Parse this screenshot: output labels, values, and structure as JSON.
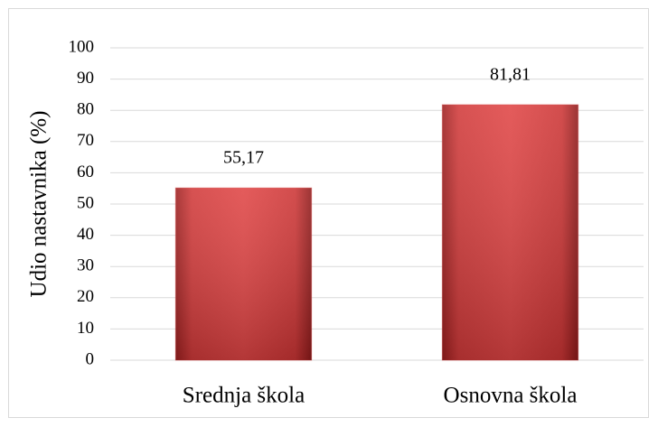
{
  "chart_data": {
    "type": "bar",
    "y_label": "Udio nastavnika (%)",
    "categories": [
      "Srednja škola",
      "Osnovna škola"
    ],
    "values": [
      55.17,
      81.81
    ],
    "value_labels": [
      "55,17",
      "81,81"
    ],
    "color": "#d43c3c",
    "ylim": [
      0,
      100
    ],
    "yticks": [
      0,
      10,
      20,
      30,
      40,
      50,
      60,
      70,
      80,
      90,
      100
    ],
    "grid": true
  }
}
